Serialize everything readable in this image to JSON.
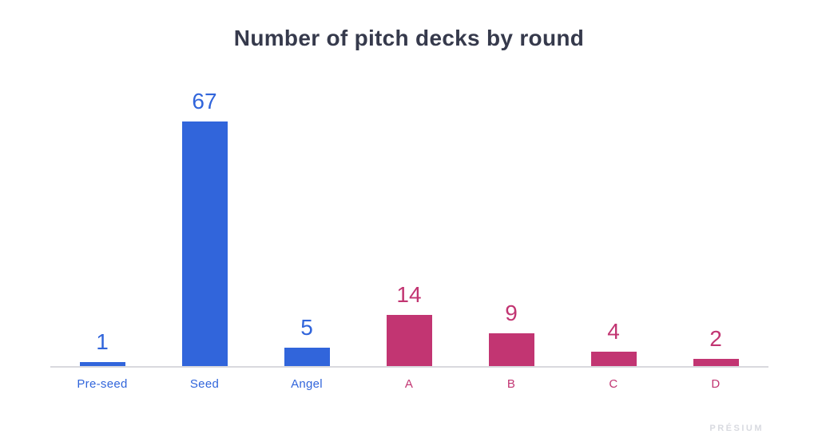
{
  "chart_data": {
    "type": "bar",
    "title": "Number of pitch decks by round",
    "categories": [
      "Pre-seed",
      "Seed",
      "Angel",
      "A",
      "B",
      "C",
      "D"
    ],
    "values": [
      1,
      67,
      5,
      14,
      9,
      4,
      2
    ],
    "bar_colors": [
      "#3165db",
      "#3165db",
      "#3165db",
      "#c23572",
      "#c23572",
      "#c23572",
      "#c23572"
    ],
    "xlabel": "",
    "ylabel": "",
    "ylim": [
      0,
      67
    ],
    "grid": false,
    "legend": false,
    "data_labels_shown": true,
    "colors": {
      "blue_series": "#3165db",
      "pink_series": "#c23572",
      "title_text": "#363a4c",
      "axis_line": "#d9d9de"
    }
  },
  "footer": {
    "watermark": "PRÉSIUM"
  }
}
